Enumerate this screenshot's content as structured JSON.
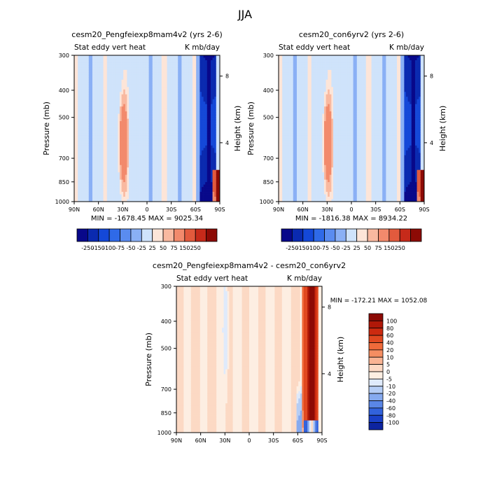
{
  "figure_title": "JJA",
  "chart_data": [
    {
      "type": "heatmap",
      "title": "cesm20_Pengfeiexp8mam4v2 (yrs 2-6)",
      "left_label": "Stat eddy vert heat",
      "right_label": "K mb/day",
      "xlabel": "",
      "ylabel": "Pressure (mb)",
      "y2label": "Height (km)",
      "xticks": [
        "90N",
        "60N",
        "30N",
        "0",
        "30S",
        "60S",
        "90S"
      ],
      "yticks": [
        "300",
        "400",
        "500",
        "700",
        "850",
        "1000"
      ],
      "y2ticks": [
        "8",
        "4"
      ],
      "ylim": [
        1000,
        300
      ],
      "y_scale": "log",
      "stats": "MIN = -1678.45   MAX = 9025.34",
      "colorbar_ticks": [
        "-250",
        "-150",
        "-100",
        "-75",
        "-50",
        "-25",
        "25",
        "50",
        "75",
        "150",
        "250"
      ],
      "colorbar_orientation": "horizontal",
      "colors": [
        "#08088a",
        "#0a2ab0",
        "#1448d8",
        "#2f6ae8",
        "#5a8cf0",
        "#8ab0f5",
        "#cfe3fb",
        "#fde5d8",
        "#f9b9a0",
        "#f28a6c",
        "#e25a3d",
        "#c62a1a",
        "#8c0a05"
      ]
    },
    {
      "type": "heatmap",
      "title": "cesm20_con6yrv2 (yrs 2-6)",
      "left_label": "Stat eddy vert heat",
      "right_label": "K mb/day",
      "xlabel": "",
      "ylabel": "Pressure (mb)",
      "y2label": "Height (km)",
      "xticks": [
        "90N",
        "60N",
        "30N",
        "0",
        "30S",
        "60S",
        "90S"
      ],
      "yticks": [
        "300",
        "400",
        "500",
        "700",
        "850",
        "1000"
      ],
      "y2ticks": [
        "8",
        "4"
      ],
      "ylim": [
        1000,
        300
      ],
      "y_scale": "log",
      "stats": "MIN = -1816.38   MAX = 8934.22",
      "colorbar_ticks": [
        "-250",
        "-150",
        "-100",
        "-75",
        "-50",
        "-25",
        "25",
        "50",
        "75",
        "150",
        "250"
      ],
      "colorbar_orientation": "horizontal",
      "colors": [
        "#08088a",
        "#0a2ab0",
        "#1448d8",
        "#2f6ae8",
        "#5a8cf0",
        "#8ab0f5",
        "#cfe3fb",
        "#fde5d8",
        "#f9b9a0",
        "#f28a6c",
        "#e25a3d",
        "#c62a1a",
        "#8c0a05"
      ]
    },
    {
      "type": "heatmap",
      "title": "cesm20_Pengfeiexp8mam4v2 - cesm20_con6yrv2",
      "left_label": "Stat eddy vert heat",
      "right_label": "K mb/day",
      "xlabel": "",
      "ylabel": "Pressure (mb)",
      "y2label": "Height (km)",
      "xticks": [
        "90N",
        "60N",
        "30N",
        "0",
        "30S",
        "60S",
        "90S"
      ],
      "yticks": [
        "300",
        "400",
        "500",
        "700",
        "850",
        "1000"
      ],
      "y2ticks": [
        "8",
        "4"
      ],
      "ylim": [
        1000,
        300
      ],
      "y_scale": "log",
      "stats": "MIN = -172.21   MAX = 1052.08",
      "colorbar_ticks": [
        "100",
        "80",
        "60",
        "40",
        "20",
        "10",
        "5",
        "0",
        "-5",
        "-10",
        "-20",
        "-40",
        "-60",
        "-80",
        "-100"
      ],
      "colorbar_orientation": "vertical",
      "colors": [
        "#8c0a05",
        "#b01808",
        "#cc2a10",
        "#e04820",
        "#f06a3a",
        "#f58e62",
        "#f9b494",
        "#fcd9c4",
        "#fdeee2",
        "#dfeafb",
        "#b5cdf5",
        "#86aaef",
        "#5a86e6",
        "#3262dc",
        "#1a40c8",
        "#0d24a0"
      ]
    }
  ]
}
